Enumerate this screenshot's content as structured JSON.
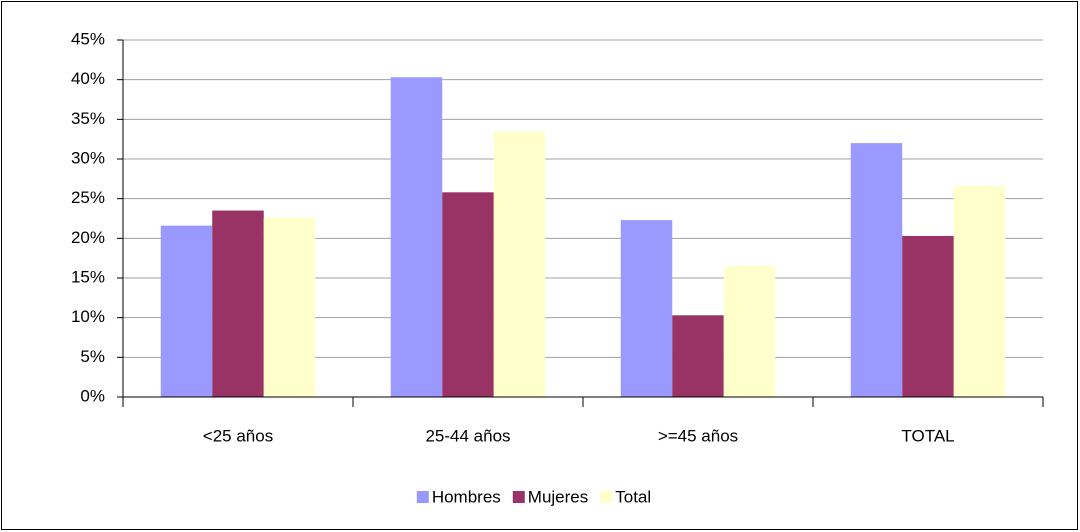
{
  "chart_data": {
    "type": "bar",
    "categories": [
      "<25 años",
      "25-44 años",
      ">=45 años",
      "TOTAL"
    ],
    "series": [
      {
        "name": "Hombres",
        "color": "#9999ff",
        "values": [
          21.6,
          40.3,
          22.3,
          32.0
        ]
      },
      {
        "name": "Mujeres",
        "color": "#993366",
        "values": [
          23.5,
          25.8,
          10.3,
          20.3
        ]
      },
      {
        "name": "Total",
        "color": "#ffffcc",
        "values": [
          22.6,
          33.5,
          16.5,
          26.6
        ]
      }
    ],
    "ylim": [
      0,
      45
    ],
    "yticks": [
      {
        "value": 0,
        "label": "0%"
      },
      {
        "value": 5,
        "label": "5%"
      },
      {
        "value": 10,
        "label": "10%"
      },
      {
        "value": 15,
        "label": "15%"
      },
      {
        "value": 20,
        "label": "20%"
      },
      {
        "value": 25,
        "label": "25%"
      },
      {
        "value": 30,
        "label": "30%"
      },
      {
        "value": 35,
        "label": "35%"
      },
      {
        "value": 40,
        "label": "40%"
      },
      {
        "value": 45,
        "label": "45%"
      }
    ],
    "grid": true,
    "legend": "bottom"
  }
}
